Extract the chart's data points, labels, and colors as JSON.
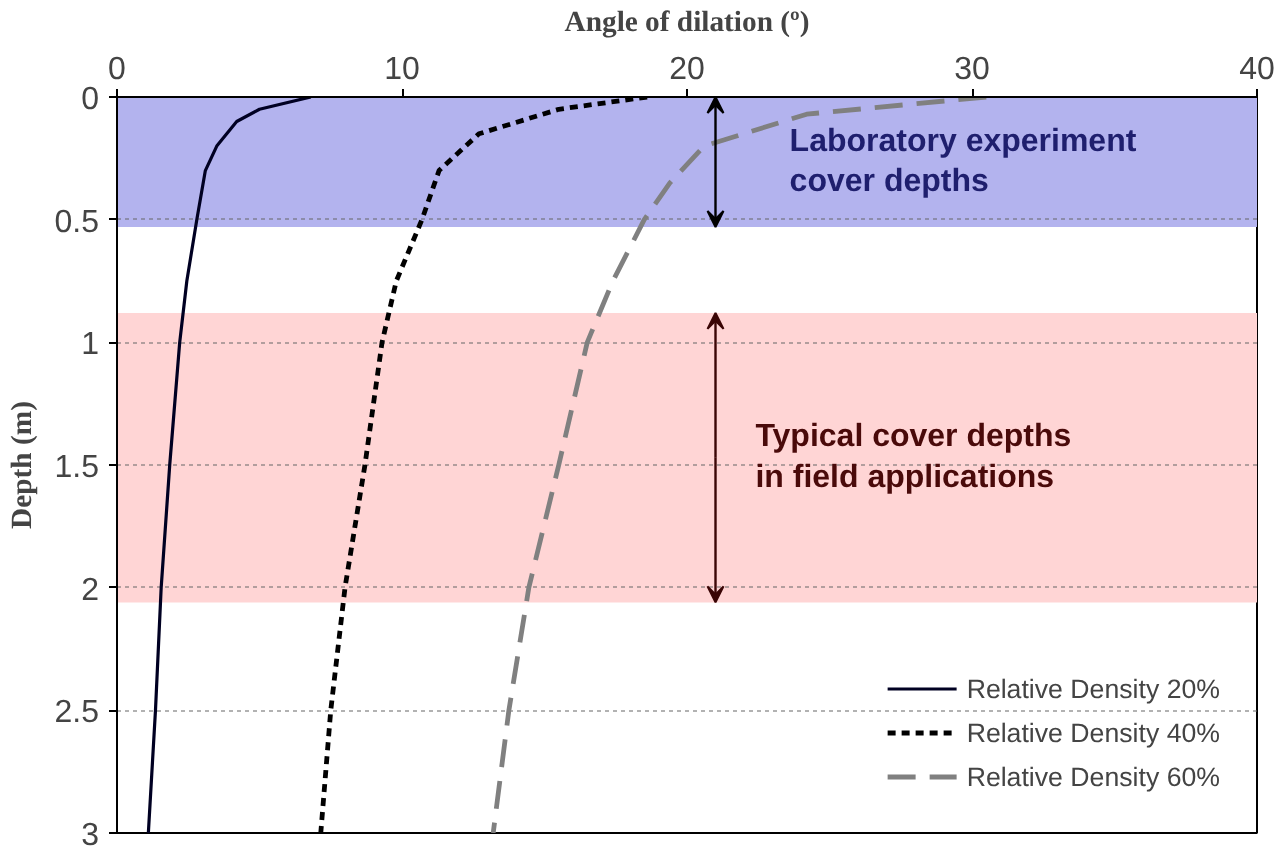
{
  "chart_data": {
    "type": "line",
    "xlabel": "Angle of dilation (º)",
    "ylabel": "Depth (m)",
    "xlim": [
      0,
      40
    ],
    "xticks": [
      0,
      10,
      20,
      30,
      40
    ],
    "ylim": [
      3,
      0
    ],
    "yticks": [
      0,
      0.5,
      1,
      1.5,
      2,
      2.5,
      3
    ],
    "grid": "y",
    "legend": "bottom right",
    "marker": "none",
    "series": [
      {
        "name": "Relative Density 20%",
        "color": "#000022",
        "line_style": "solid",
        "x": [
          6.8,
          5.0,
          4.2,
          3.5,
          3.1,
          2.8,
          2.45,
          2.2,
          1.85,
          1.55,
          1.35,
          1.1
        ],
        "values": [
          0,
          0.05,
          0.1,
          0.2,
          0.3,
          0.5,
          0.75,
          1,
          1.5,
          2,
          2.5,
          3
        ]
      },
      {
        "name": "Relative Density 40%",
        "color": "#000000",
        "line_style": "dotted",
        "x": [
          18.6,
          15.5,
          12.7,
          11.3,
          10.7,
          9.8,
          9.3,
          8.7,
          8.0,
          7.5,
          7.15
        ],
        "values": [
          0,
          0.05,
          0.15,
          0.3,
          0.5,
          0.75,
          1,
          1.5,
          2,
          2.5,
          3
        ]
      },
      {
        "name": "Relative Density 60%",
        "color": "#808080",
        "line_style": "dashed",
        "x": [
          30.5,
          24.2,
          20.6,
          19.4,
          18.5,
          17.4,
          16.5,
          15.5,
          14.45,
          13.75,
          13.2
        ],
        "values": [
          0,
          0.07,
          0.2,
          0.35,
          0.5,
          0.75,
          1,
          1.5,
          2,
          2.5,
          3
        ]
      }
    ],
    "bands": [
      {
        "axis": "y",
        "from": 0,
        "to": 0.53,
        "label": "Laboratory experiment\ncover depths",
        "color": "#b3b3ee"
      },
      {
        "axis": "y",
        "from": 0.88,
        "to": 2.06,
        "label": "Typical cover depths\nin  field applications",
        "color": "#ffd5d5"
      }
    ]
  }
}
